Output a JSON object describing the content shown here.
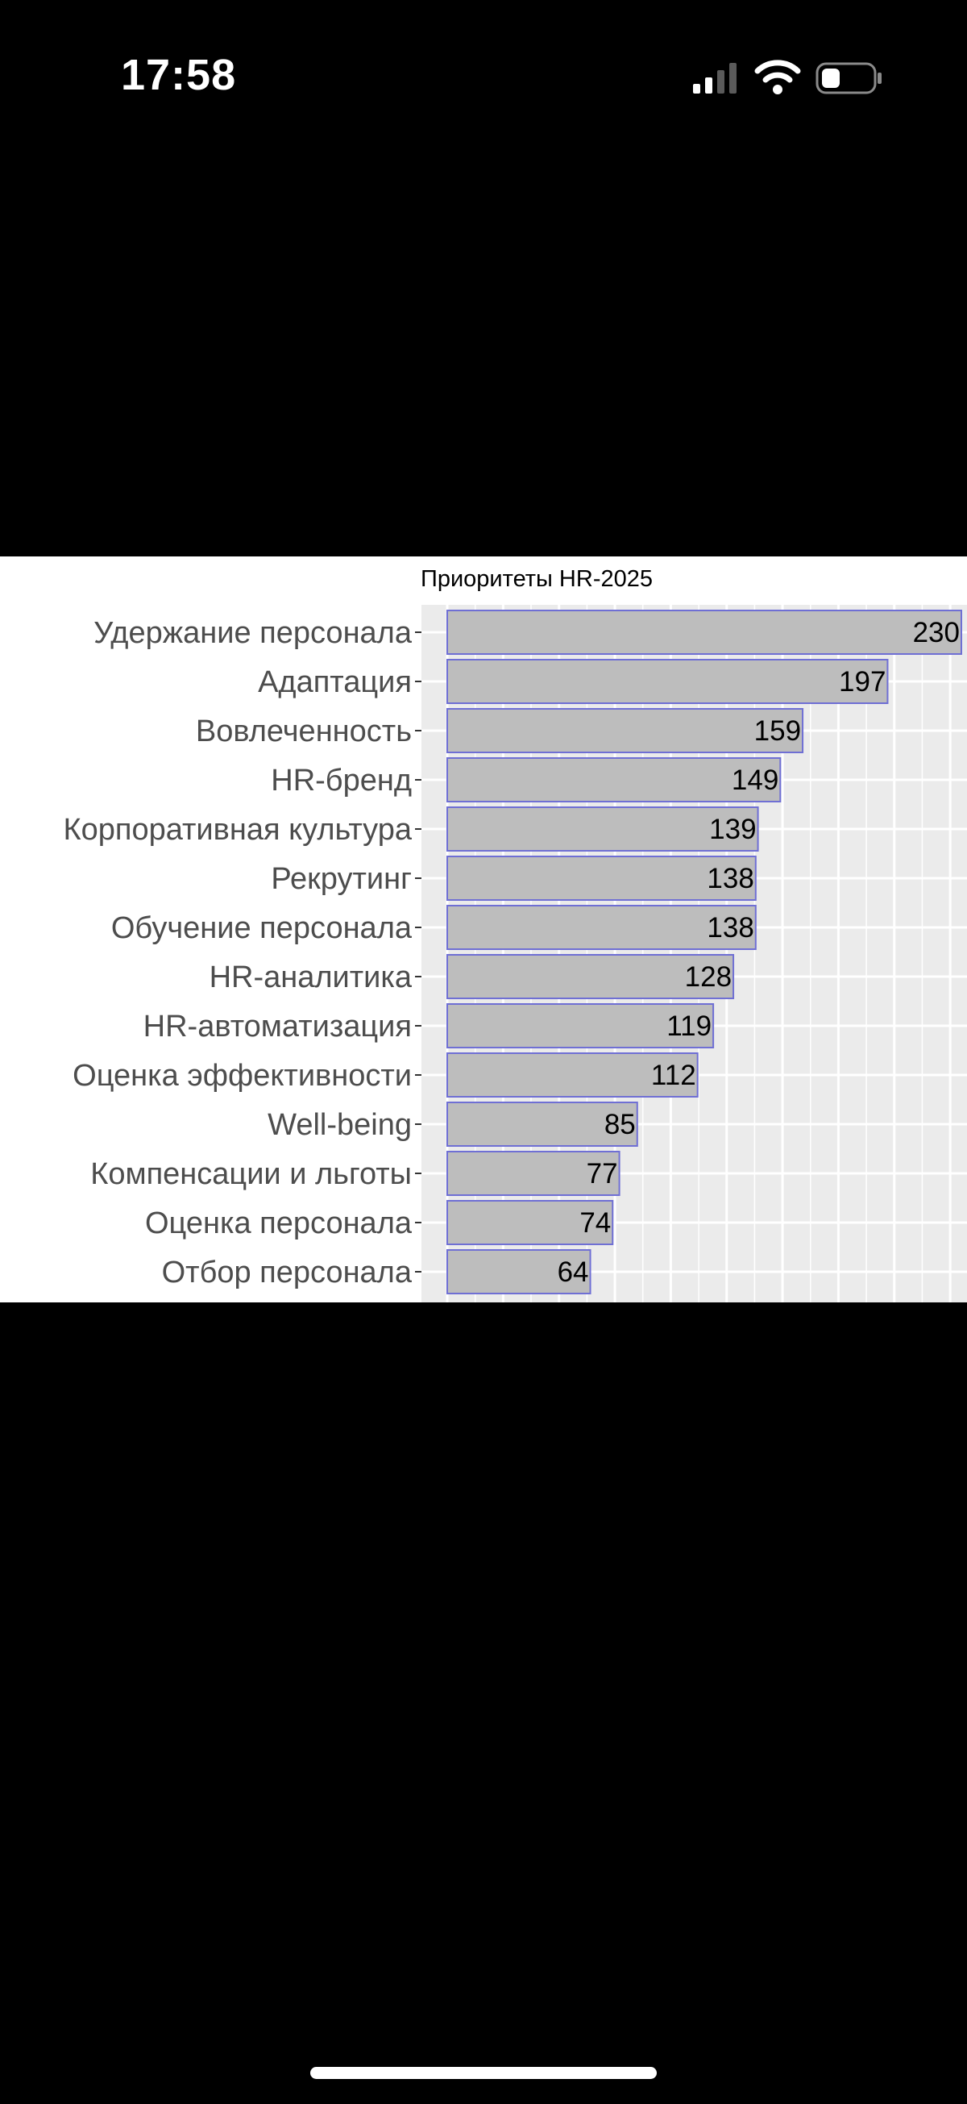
{
  "status_bar": {
    "time": "17:58",
    "icons": [
      "cellular-signal-icon",
      "wifi-icon",
      "battery-icon"
    ]
  },
  "chart_data": {
    "type": "bar",
    "orientation": "horizontal",
    "title": "Приоритеты HR-2025",
    "xlabel": "",
    "ylabel": "",
    "categories": [
      "Удержание персонала",
      "Адаптация",
      "Вовлеченность",
      "HR-бренд",
      "Корпоративная культура",
      "Рекрутинг",
      "Обучение персонала",
      "HR-аналитика",
      "HR-автоматизация",
      "Оценка эффективности",
      "Well-being",
      "Компенсации и льготы",
      "Оценка персонала",
      "Отбор персонала"
    ],
    "values": [
      230,
      197,
      159,
      149,
      139,
      138,
      138,
      128,
      119,
      112,
      85,
      77,
      74,
      64
    ],
    "xlim": [
      0,
      232
    ],
    "grid": true,
    "x_tick_labels_visible": false,
    "colors": {
      "bar_fill": "#bdbdbd",
      "bar_outline": "#6f6fd4",
      "panel_background": "#ebebeb",
      "grid": "#ffffff",
      "category_label": "#4d4d4d",
      "value_label": "#000000"
    }
  },
  "colors": {
    "page_background": "#000000",
    "screenshot_background": "#ffffff",
    "status_text": "#ffffff"
  }
}
